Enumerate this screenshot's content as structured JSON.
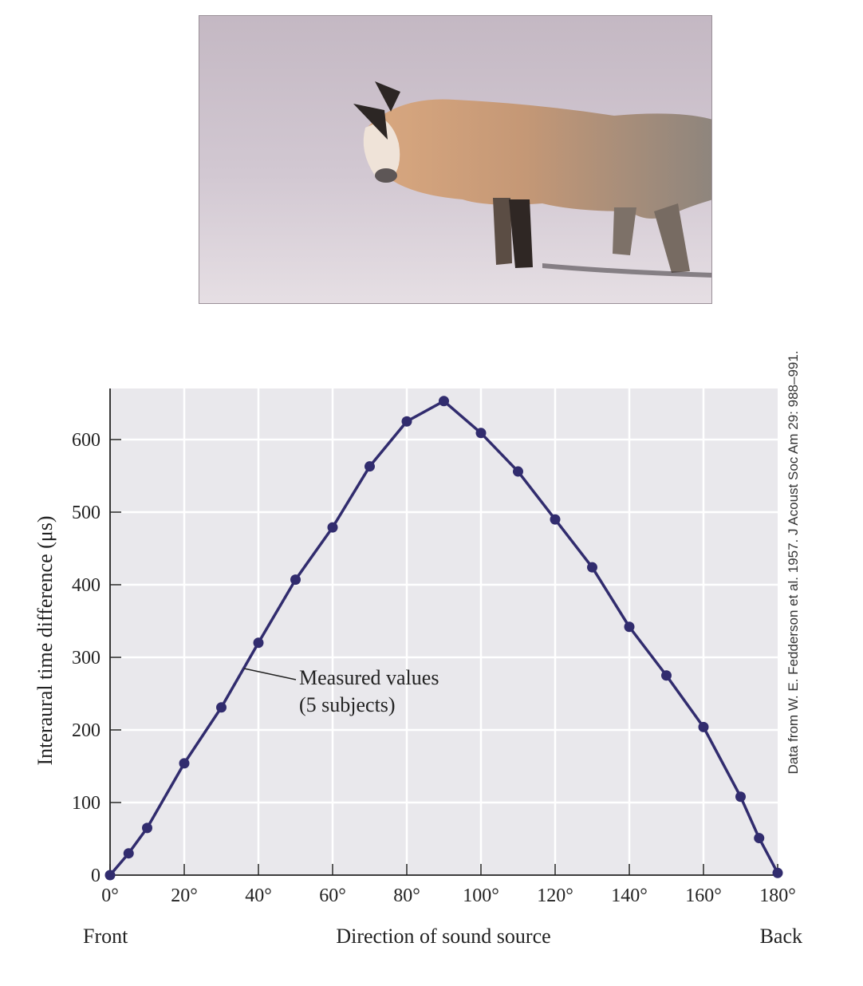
{
  "figure": {
    "photo": {
      "subject": "red fox walking on snow, head lowered",
      "background": "#c8bcc6",
      "snow": "#e4dde2"
    },
    "colors": {
      "plot_bg": "#e9e8ec",
      "grid": "#ffffff",
      "line": "#312c6e",
      "axis": "#222222"
    }
  },
  "chart_data": {
    "type": "line",
    "title": "",
    "xlabel": "Direction of sound source",
    "ylabel": "Interaural time difference (μs)",
    "x_end_labels": {
      "left": "Front",
      "right": "Back"
    },
    "xlim": [
      0,
      180
    ],
    "ylim": [
      0,
      670
    ],
    "grid": true,
    "x_ticks": [
      0,
      20,
      40,
      60,
      80,
      100,
      120,
      140,
      160,
      180
    ],
    "x_tick_labels": [
      "0°",
      "20°",
      "40°",
      "60°",
      "80°",
      "100°",
      "120°",
      "140°",
      "160°",
      "180°"
    ],
    "y_ticks": [
      0,
      100,
      200,
      300,
      400,
      500,
      600
    ],
    "y_tick_labels": [
      "0",
      "100",
      "200",
      "300",
      "400",
      "500",
      "600"
    ],
    "series": [
      {
        "name": "Measured values (5 subjects)",
        "x": [
          0,
          5,
          10,
          20,
          30,
          40,
          50,
          60,
          70,
          80,
          90,
          100,
          110,
          120,
          130,
          140,
          150,
          160,
          170,
          175,
          180
        ],
        "values": [
          0,
          30,
          65,
          154,
          231,
          320,
          407,
          479,
          563,
          625,
          653,
          609,
          556,
          490,
          424,
          342,
          275,
          204,
          108,
          51,
          3
        ]
      }
    ],
    "annotation": {
      "line1": "Measured values",
      "line2": "(5 subjects)"
    },
    "credit": "Data from W. E. Fedderson et al. 1957. J Acoust Soc Am 29: 988–991."
  }
}
